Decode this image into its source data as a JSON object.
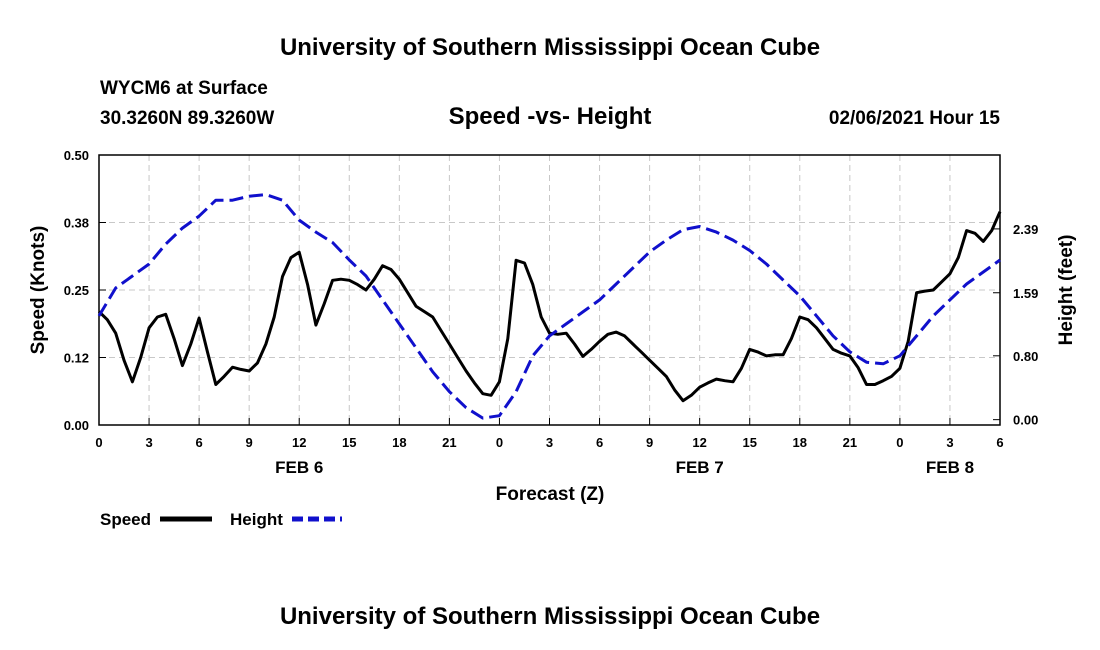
{
  "header": {
    "title": "University of Southern Mississippi Ocean Cube",
    "station": "WYCM6 at Surface",
    "coords": "30.3260N 89.3260W",
    "datetime": "02/06/2021 Hour 15"
  },
  "footer": {
    "title": "University of Southern Mississippi Ocean Cube"
  },
  "chart_data": {
    "type": "line",
    "title": "Speed -vs- Height",
    "xlabel": "Forecast (Z)",
    "ylabel": "Speed (Knots)",
    "y2label": "Height (feet)",
    "xlim": [
      0,
      54
    ],
    "ylim": [
      0,
      0.5
    ],
    "y2lim": [
      -0.067,
      3.316
    ],
    "x_ticks": [
      0,
      3,
      6,
      9,
      12,
      15,
      18,
      21,
      24,
      27,
      30,
      33,
      36,
      39,
      42,
      45,
      48,
      51,
      54
    ],
    "x_tick_labels": [
      "0",
      "3",
      "6",
      "9",
      "12",
      "15",
      "18",
      "21",
      "0",
      "3",
      "6",
      "9",
      "12",
      "15",
      "18",
      "21",
      "0",
      "3",
      "6"
    ],
    "date_labels": [
      {
        "x": 12,
        "label": "FEB 6"
      },
      {
        "x": 36,
        "label": "FEB 7"
      },
      {
        "x": 51,
        "label": "FEB 8"
      }
    ],
    "y_ticks": [
      0,
      0.125,
      0.25,
      0.375,
      0.5
    ],
    "y_tick_labels": [
      "0.00",
      "0.12",
      "0.25",
      "0.38",
      "0.50"
    ],
    "y2_ticks": [
      0.0,
      0.8,
      1.59,
      2.39
    ],
    "y2_tick_labels": [
      "0.00",
      "0.80",
      "1.59",
      "2.39"
    ],
    "grid": true,
    "legend": [
      {
        "name": "Speed",
        "color": "#000000",
        "style": "solid"
      },
      {
        "name": "Height",
        "color": "#1010cc",
        "style": "dashed"
      }
    ],
    "series": [
      {
        "name": "Speed",
        "axis": "left",
        "color": "#000000",
        "x": [
          0,
          0.5,
          1,
          1.5,
          2,
          2.5,
          3,
          3.5,
          4,
          4.5,
          5,
          5.5,
          6,
          6.5,
          7,
          7.5,
          8,
          8.5,
          9,
          9.5,
          10,
          10.5,
          11,
          11.5,
          12,
          12.5,
          13,
          13.5,
          14,
          14.5,
          15,
          15.5,
          16,
          16.5,
          17,
          17.5,
          18,
          18.5,
          19,
          19.5,
          20,
          20.5,
          21,
          21.5,
          22,
          22.5,
          23,
          23.5,
          24,
          24.5,
          25,
          25.5,
          26,
          26.5,
          27,
          27.5,
          28,
          28.5,
          29,
          29.5,
          30,
          30.5,
          31,
          31.5,
          32,
          32.5,
          33,
          33.5,
          34,
          34.5,
          35,
          35.5,
          36,
          36.5,
          37,
          37.5,
          38,
          38.5,
          39,
          39.5,
          40,
          40.5,
          41,
          41.5,
          42,
          42.5,
          43,
          43.5,
          44,
          44.5,
          45,
          45.5,
          46,
          46.5,
          47,
          47.5,
          48,
          48.5,
          49,
          49.5,
          50,
          50.5,
          51,
          51.5,
          52,
          52.5,
          53,
          53.5,
          54
        ],
        "values": [
          0.21,
          0.195,
          0.17,
          0.12,
          0.08,
          0.125,
          0.18,
          0.2,
          0.205,
          0.16,
          0.11,
          0.15,
          0.198,
          0.135,
          0.075,
          0.09,
          0.107,
          0.103,
          0.1,
          0.115,
          0.15,
          0.2,
          0.275,
          0.31,
          0.32,
          0.26,
          0.185,
          0.225,
          0.268,
          0.27,
          0.268,
          0.26,
          0.25,
          0.27,
          0.295,
          0.288,
          0.27,
          0.245,
          0.22,
          0.21,
          0.2,
          0.175,
          0.15,
          0.125,
          0.1,
          0.078,
          0.058,
          0.055,
          0.08,
          0.16,
          0.305,
          0.3,
          0.26,
          0.2,
          0.17,
          0.168,
          0.17,
          0.15,
          0.127,
          0.14,
          0.155,
          0.168,
          0.172,
          0.165,
          0.15,
          0.135,
          0.12,
          0.105,
          0.09,
          0.065,
          0.045,
          0.055,
          0.07,
          0.078,
          0.085,
          0.082,
          0.08,
          0.105,
          0.14,
          0.135,
          0.128,
          0.13,
          0.13,
          0.16,
          0.2,
          0.195,
          0.18,
          0.16,
          0.14,
          0.133,
          0.128,
          0.106,
          0.075,
          0.075,
          0.082,
          0.09,
          0.105,
          0.155,
          0.245,
          0.248,
          0.25,
          0.265,
          0.28,
          0.31,
          0.36,
          0.355,
          0.34,
          0.36,
          0.395
        ]
      },
      {
        "name": "Height",
        "axis": "right",
        "color": "#1010cc",
        "x": [
          0,
          1,
          2,
          3,
          4,
          5,
          6,
          7,
          8,
          9,
          10,
          11,
          12,
          13,
          14,
          15,
          16,
          17,
          18,
          19,
          20,
          21,
          22,
          23,
          24,
          25,
          26,
          27,
          28,
          29,
          30,
          31,
          32,
          33,
          34,
          35,
          36,
          37,
          38,
          39,
          40,
          41,
          42,
          43,
          44,
          45,
          46,
          47,
          48,
          49,
          50,
          51,
          52,
          53,
          54
        ],
        "values": [
          1.3,
          1.65,
          1.8,
          1.95,
          2.2,
          2.4,
          2.55,
          2.75,
          2.75,
          2.8,
          2.82,
          2.75,
          2.5,
          2.35,
          2.22,
          2.0,
          1.8,
          1.5,
          1.2,
          0.9,
          0.6,
          0.35,
          0.15,
          0.02,
          0.05,
          0.35,
          0.8,
          1.05,
          1.2,
          1.35,
          1.5,
          1.7,
          1.9,
          2.1,
          2.25,
          2.38,
          2.42,
          2.35,
          2.25,
          2.12,
          1.95,
          1.75,
          1.55,
          1.3,
          1.05,
          0.85,
          0.72,
          0.7,
          0.8,
          1.05,
          1.3,
          1.5,
          1.7,
          1.85,
          2.0
        ]
      }
    ]
  }
}
